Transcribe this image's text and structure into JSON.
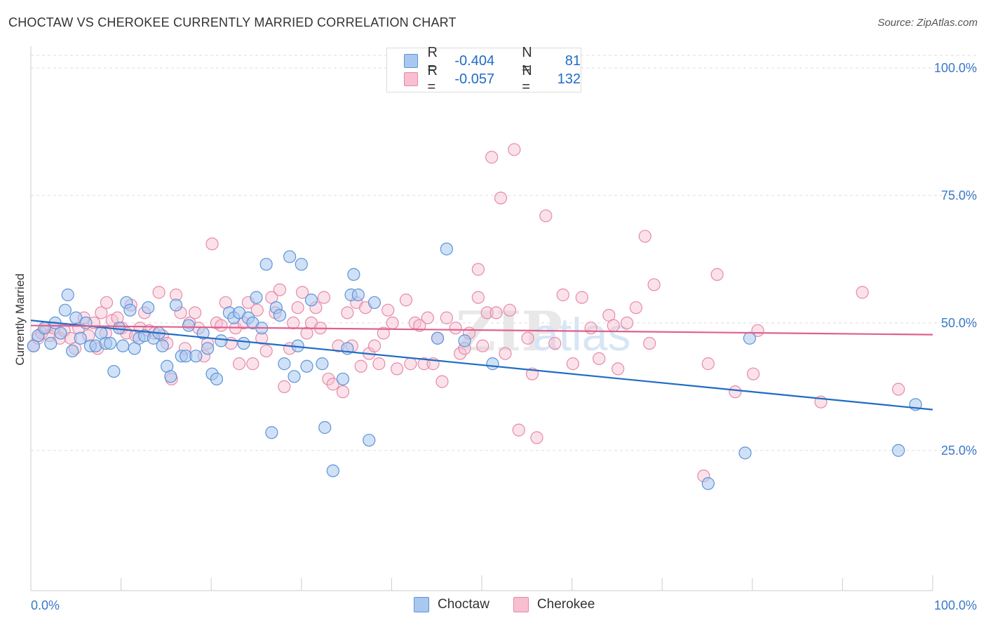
{
  "header": {
    "title": "CHOCTAW VS CHEROKEE CURRENTLY MARRIED CORRELATION CHART",
    "source": "Source: ZipAtlas.com"
  },
  "legend": {
    "r_label": "R =",
    "n_label": "N =",
    "rows": [
      {
        "name": "Choctaw",
        "r": "-0.404",
        "n": "81",
        "fill": "#a9c8f0",
        "stroke": "#5b93d6"
      },
      {
        "name": "Cherokee",
        "r": "-0.057",
        "n": "132",
        "fill": "#f7bfd0",
        "stroke": "#e58aa8"
      }
    ]
  },
  "colors": {
    "choctaw_line": "#1f6cc4",
    "cherokee_line": "#e0608d",
    "axis_text": "#3a78c9",
    "grid": "#dddddd"
  },
  "chart_data": {
    "type": "scatter",
    "title": "CHOCTAW VS CHEROKEE CURRENTLY MARRIED CORRELATION CHART",
    "xlabel": "",
    "ylabel": "Currently Married",
    "xlim": [
      0,
      100
    ],
    "ylim": [
      0,
      105
    ],
    "x_tick_labels": [
      "0.0%",
      "100.0%"
    ],
    "y_ticks": [
      25,
      50,
      75,
      100
    ],
    "y_tick_labels": [
      "25.0%",
      "50.0%",
      "75.0%",
      "100.0%"
    ],
    "grid": true,
    "legend_position": "top-center",
    "watermark": "ZIPatlas",
    "series": [
      {
        "name": "Choctaw",
        "trend": {
          "x": [
            0,
            100
          ],
          "y": [
            50.5,
            33.0
          ]
        },
        "points": [
          [
            0.3,
            45.5
          ],
          [
            0.8,
            47.5
          ],
          [
            1.5,
            49
          ],
          [
            2.2,
            46
          ],
          [
            2.7,
            50
          ],
          [
            3.3,
            48
          ],
          [
            3.8,
            52.5
          ],
          [
            4.1,
            55.5
          ],
          [
            4.6,
            44.5
          ],
          [
            5.0,
            51
          ],
          [
            5.5,
            47
          ],
          [
            6.1,
            50
          ],
          [
            6.6,
            45.5
          ],
          [
            7.2,
            45.5
          ],
          [
            7.8,
            48
          ],
          [
            8.3,
            46
          ],
          [
            8.8,
            46
          ],
          [
            9.2,
            40.5
          ],
          [
            9.8,
            49
          ],
          [
            10.2,
            45.5
          ],
          [
            10.6,
            54
          ],
          [
            11.0,
            52.5
          ],
          [
            11.5,
            45
          ],
          [
            12.0,
            47
          ],
          [
            12.6,
            47.5
          ],
          [
            13.0,
            53
          ],
          [
            13.6,
            47
          ],
          [
            14.2,
            48
          ],
          [
            14.6,
            45.5
          ],
          [
            15.1,
            41.5
          ],
          [
            15.5,
            39.5
          ],
          [
            16.1,
            53.5
          ],
          [
            16.7,
            43.5
          ],
          [
            17.2,
            43.5
          ],
          [
            17.5,
            49.5
          ],
          [
            18.3,
            43.5
          ],
          [
            19.1,
            48
          ],
          [
            19.6,
            45
          ],
          [
            20.1,
            40
          ],
          [
            20.6,
            39
          ],
          [
            21.1,
            46.5
          ],
          [
            22.0,
            52
          ],
          [
            22.5,
            51
          ],
          [
            23.1,
            52
          ],
          [
            23.6,
            46
          ],
          [
            24.1,
            51
          ],
          [
            24.6,
            50
          ],
          [
            25.0,
            55
          ],
          [
            25.6,
            49
          ],
          [
            26.1,
            61.5
          ],
          [
            26.7,
            28.5
          ],
          [
            27.2,
            53
          ],
          [
            27.6,
            51.5
          ],
          [
            28.1,
            42
          ],
          [
            28.7,
            63
          ],
          [
            29.2,
            39.5
          ],
          [
            29.6,
            45.5
          ],
          [
            30.0,
            61.5
          ],
          [
            30.6,
            41.5
          ],
          [
            31.1,
            54.5
          ],
          [
            32.3,
            42
          ],
          [
            32.6,
            29.5
          ],
          [
            33.5,
            21
          ],
          [
            34.6,
            39
          ],
          [
            35.1,
            45
          ],
          [
            35.5,
            55.5
          ],
          [
            35.8,
            59.5
          ],
          [
            36.3,
            55.5
          ],
          [
            37.5,
            27
          ],
          [
            38.1,
            54
          ],
          [
            45.1,
            47
          ],
          [
            46.1,
            64.5
          ],
          [
            48.1,
            46.5
          ],
          [
            51.2,
            42
          ],
          [
            79.7,
            47
          ],
          [
            79.2,
            24.5
          ],
          [
            75.1,
            18.5
          ],
          [
            96.2,
            25
          ],
          [
            98.1,
            34
          ]
        ]
      },
      {
        "name": "Cherokee",
        "trend": {
          "x": [
            0,
            100
          ],
          "y": [
            49.5,
            47.7
          ]
        },
        "points": [
          [
            0.3,
            45.5
          ],
          [
            0.8,
            47
          ],
          [
            1.2,
            48
          ],
          [
            1.7,
            49
          ],
          [
            2.1,
            47.5
          ],
          [
            2.6,
            49
          ],
          [
            3.2,
            47
          ],
          [
            3.7,
            48.5
          ],
          [
            4.4,
            47
          ],
          [
            4.9,
            45
          ],
          [
            5.3,
            49
          ],
          [
            5.9,
            51
          ],
          [
            6.4,
            47.5
          ],
          [
            7.0,
            50
          ],
          [
            7.4,
            45
          ],
          [
            7.8,
            52
          ],
          [
            8.3,
            48
          ],
          [
            8.4,
            54
          ],
          [
            9.0,
            50.5
          ],
          [
            9.6,
            51
          ],
          [
            10.1,
            49
          ],
          [
            10.6,
            48
          ],
          [
            11.1,
            53.5
          ],
          [
            11.6,
            47.5
          ],
          [
            12.1,
            49
          ],
          [
            12.6,
            52
          ],
          [
            13.1,
            48.5
          ],
          [
            13.7,
            48
          ],
          [
            14.2,
            56
          ],
          [
            14.6,
            47.5
          ],
          [
            15.1,
            46
          ],
          [
            15.6,
            39
          ],
          [
            16.1,
            55.5
          ],
          [
            16.6,
            52
          ],
          [
            17.1,
            45
          ],
          [
            17.6,
            50
          ],
          [
            18.2,
            52
          ],
          [
            18.6,
            49
          ],
          [
            19.2,
            43.5
          ],
          [
            19.6,
            46
          ],
          [
            20.1,
            65.5
          ],
          [
            20.6,
            50
          ],
          [
            21.1,
            49.5
          ],
          [
            21.6,
            54
          ],
          [
            22.2,
            46
          ],
          [
            22.7,
            49
          ],
          [
            23.1,
            42
          ],
          [
            23.6,
            50
          ],
          [
            24.1,
            54
          ],
          [
            24.6,
            42
          ],
          [
            25.1,
            52.5
          ],
          [
            25.6,
            47
          ],
          [
            26.1,
            44.5
          ],
          [
            26.7,
            55
          ],
          [
            27.1,
            52
          ],
          [
            27.6,
            56.5
          ],
          [
            28.1,
            37.5
          ],
          [
            28.7,
            45
          ],
          [
            29.1,
            50
          ],
          [
            29.6,
            53
          ],
          [
            30.1,
            56
          ],
          [
            30.6,
            48
          ],
          [
            31.1,
            50
          ],
          [
            31.6,
            53
          ],
          [
            32.1,
            49
          ],
          [
            32.5,
            55
          ],
          [
            33.0,
            39
          ],
          [
            33.5,
            38
          ],
          [
            34.1,
            45.5
          ],
          [
            34.6,
            36.5
          ],
          [
            35.1,
            52
          ],
          [
            35.6,
            45.5
          ],
          [
            36.1,
            54
          ],
          [
            36.6,
            41.5
          ],
          [
            37.1,
            53
          ],
          [
            37.5,
            44
          ],
          [
            38.1,
            45.5
          ],
          [
            38.6,
            42
          ],
          [
            39.1,
            48
          ],
          [
            39.6,
            52.5
          ],
          [
            40.1,
            50
          ],
          [
            40.6,
            41
          ],
          [
            41.6,
            54.5
          ],
          [
            42.1,
            42
          ],
          [
            42.6,
            50
          ],
          [
            43.1,
            49.5
          ],
          [
            43.6,
            42
          ],
          [
            44.0,
            51
          ],
          [
            44.6,
            42
          ],
          [
            45.1,
            47
          ],
          [
            45.6,
            38.5
          ],
          [
            46.1,
            51
          ],
          [
            47.1,
            49
          ],
          [
            47.6,
            44
          ],
          [
            48.1,
            45
          ],
          [
            48.6,
            48
          ],
          [
            49.6,
            60.5
          ],
          [
            49.6,
            55
          ],
          [
            50.1,
            45.5
          ],
          [
            50.6,
            52
          ],
          [
            51.1,
            82.5
          ],
          [
            51.6,
            52
          ],
          [
            52.1,
            74.5
          ],
          [
            52.6,
            44
          ],
          [
            53.1,
            52.5
          ],
          [
            53.6,
            84
          ],
          [
            54.1,
            29
          ],
          [
            55.1,
            47
          ],
          [
            55.6,
            40
          ],
          [
            56.1,
            27.5
          ],
          [
            57.1,
            71
          ],
          [
            58.1,
            46
          ],
          [
            59.0,
            55.5
          ],
          [
            60.1,
            42
          ],
          [
            61.1,
            55
          ],
          [
            62.1,
            49
          ],
          [
            63.0,
            43
          ],
          [
            64.1,
            51.5
          ],
          [
            64.6,
            49.5
          ],
          [
            65.1,
            41
          ],
          [
            66.1,
            50
          ],
          [
            67.1,
            53
          ],
          [
            68.1,
            67
          ],
          [
            68.6,
            46
          ],
          [
            69.1,
            57.5
          ],
          [
            74.6,
            20
          ],
          [
            75.1,
            42
          ],
          [
            76.1,
            59.5
          ],
          [
            78.1,
            36.5
          ],
          [
            80.1,
            40
          ],
          [
            80.6,
            48.5
          ],
          [
            87.6,
            34.5
          ],
          [
            92.2,
            56
          ],
          [
            96.2,
            37
          ]
        ]
      }
    ]
  }
}
